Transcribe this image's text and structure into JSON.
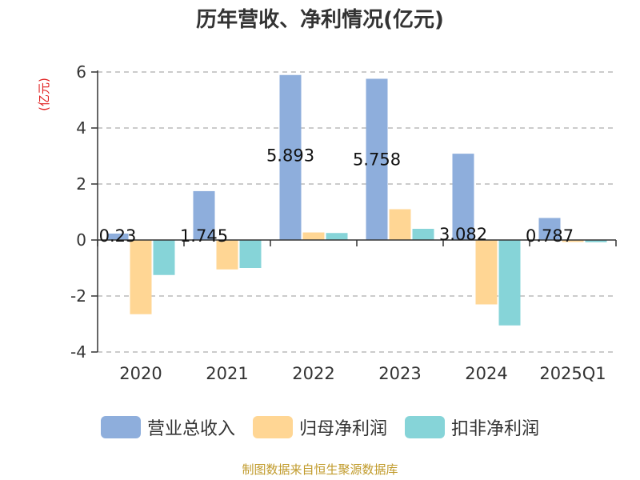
{
  "chart_data": {
    "type": "bar",
    "title": "历年营收、净利情况(亿元)",
    "ylabel": "(亿元)",
    "categories": [
      "2020",
      "2021",
      "2022",
      "2023",
      "2024",
      "2025Q1"
    ],
    "yticks": [
      "-4",
      "-2",
      "0",
      "2",
      "4",
      "6"
    ],
    "ylim": [
      -4,
      6
    ],
    "series": [
      {
        "name": "营业总收入",
        "color": "#8eaedc",
        "values": [
          0.23,
          1.745,
          5.893,
          5.758,
          3.082,
          0.787
        ],
        "labels": [
          "0.23",
          "1.745",
          "5.893",
          "5.758",
          "3.082",
          "0.787"
        ]
      },
      {
        "name": "归母净利润",
        "color": "#ffd694",
        "values": [
          -2.65,
          -1.05,
          0.27,
          1.1,
          -2.3,
          -0.07
        ]
      },
      {
        "name": "扣非净利润",
        "color": "#86d4d8",
        "values": [
          -1.25,
          -1.0,
          0.25,
          0.4,
          -3.05,
          -0.08
        ]
      }
    ],
    "grid": true,
    "legend_position": "bottom"
  },
  "source": "制图数据来自恒生聚源数据库"
}
